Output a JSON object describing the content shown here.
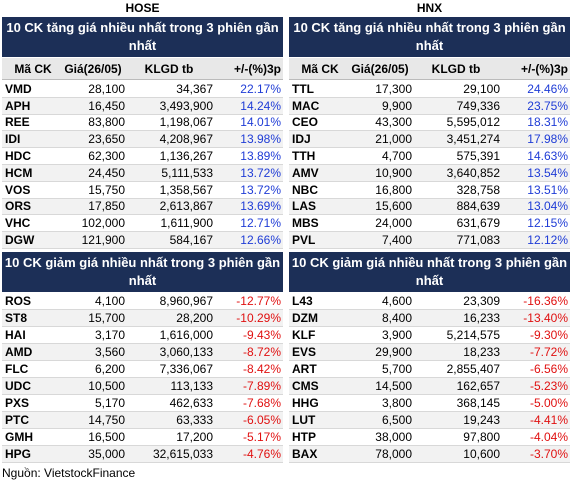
{
  "exchanges": [
    {
      "name": "HOSE",
      "gainers": {
        "title": "10 CK tăng giá nhiều nhất trong 3 phiên gần nhất",
        "header": [
          "Mã CK",
          "Giá(26/05)",
          "KLGD tb",
          "+/-(%)3p"
        ],
        "rows": [
          [
            "VMD",
            "28,100",
            "34,367",
            "22.17%"
          ],
          [
            "APH",
            "16,450",
            "3,493,900",
            "14.24%"
          ],
          [
            "REE",
            "83,800",
            "1,198,067",
            "14.01%"
          ],
          [
            "IDI",
            "23,650",
            "4,208,967",
            "13.98%"
          ],
          [
            "HDC",
            "62,300",
            "1,136,267",
            "13.89%"
          ],
          [
            "HCM",
            "24,450",
            "5,111,533",
            "13.72%"
          ],
          [
            "VOS",
            "15,750",
            "1,358,567",
            "13.72%"
          ],
          [
            "ORS",
            "17,850",
            "2,613,867",
            "13.69%"
          ],
          [
            "VHC",
            "102,000",
            "1,611,900",
            "12.71%"
          ],
          [
            "DGW",
            "121,900",
            "584,167",
            "12.66%"
          ]
        ]
      },
      "losers": {
        "title": "10 CK giảm giá nhiều nhất trong 3 phiên gần nhất",
        "rows": [
          [
            "ROS",
            "4,100",
            "8,960,967",
            "-12.77%"
          ],
          [
            "ST8",
            "15,700",
            "28,200",
            "-10.29%"
          ],
          [
            "HAI",
            "3,170",
            "1,616,000",
            "-9.43%"
          ],
          [
            "AMD",
            "3,560",
            "3,060,133",
            "-8.72%"
          ],
          [
            "FLC",
            "6,200",
            "7,336,067",
            "-8.42%"
          ],
          [
            "UDC",
            "10,500",
            "113,133",
            "-7.89%"
          ],
          [
            "PXS",
            "5,170",
            "462,633",
            "-7.68%"
          ],
          [
            "PTC",
            "14,750",
            "63,333",
            "-6.05%"
          ],
          [
            "GMH",
            "16,500",
            "17,200",
            "-5.17%"
          ],
          [
            "HPG",
            "35,000",
            "32,615,033",
            "-4.76%"
          ]
        ]
      }
    },
    {
      "name": "HNX",
      "gainers": {
        "title": "10 CK tăng giá nhiều nhất trong 3 phiên gần nhất",
        "header": [
          "Mã CK",
          "Giá(26/05)",
          "KLGD tb",
          "+/-(%)3p"
        ],
        "rows": [
          [
            "TTL",
            "17,300",
            "29,100",
            "24.46%"
          ],
          [
            "MAC",
            "9,900",
            "749,336",
            "23.75%"
          ],
          [
            "CEO",
            "43,300",
            "5,595,012",
            "18.31%"
          ],
          [
            "IDJ",
            "21,000",
            "3,451,274",
            "17.98%"
          ],
          [
            "TTH",
            "4,700",
            "575,391",
            "14.63%"
          ],
          [
            "AMV",
            "10,900",
            "3,640,852",
            "13.54%"
          ],
          [
            "NBC",
            "16,800",
            "328,758",
            "13.51%"
          ],
          [
            "LAS",
            "15,600",
            "884,639",
            "13.04%"
          ],
          [
            "MBS",
            "24,000",
            "631,679",
            "12.15%"
          ],
          [
            "PVL",
            "7,400",
            "771,083",
            "12.12%"
          ]
        ]
      },
      "losers": {
        "title": "10 CK giảm giá nhiều nhất trong 3 phiên gần nhất",
        "rows": [
          [
            "L43",
            "4,600",
            "23,309",
            "-16.36%"
          ],
          [
            "DZM",
            "8,400",
            "16,233",
            "-13.40%"
          ],
          [
            "KLF",
            "3,900",
            "5,214,575",
            "-9.30%"
          ],
          [
            "EVS",
            "29,900",
            "18,233",
            "-7.72%"
          ],
          [
            "ART",
            "5,700",
            "2,855,407",
            "-6.56%"
          ],
          [
            "CMS",
            "14,500",
            "162,657",
            "-5.23%"
          ],
          [
            "HHG",
            "3,800",
            "368,145",
            "-5.00%"
          ],
          [
            "LUT",
            "6,500",
            "19,243",
            "-4.41%"
          ],
          [
            "HTP",
            "38,000",
            "97,800",
            "-4.04%"
          ],
          [
            "BAX",
            "78,000",
            "10,600",
            "-3.70%"
          ]
        ]
      }
    }
  ],
  "source": "Nguồn: VietstockFinance"
}
